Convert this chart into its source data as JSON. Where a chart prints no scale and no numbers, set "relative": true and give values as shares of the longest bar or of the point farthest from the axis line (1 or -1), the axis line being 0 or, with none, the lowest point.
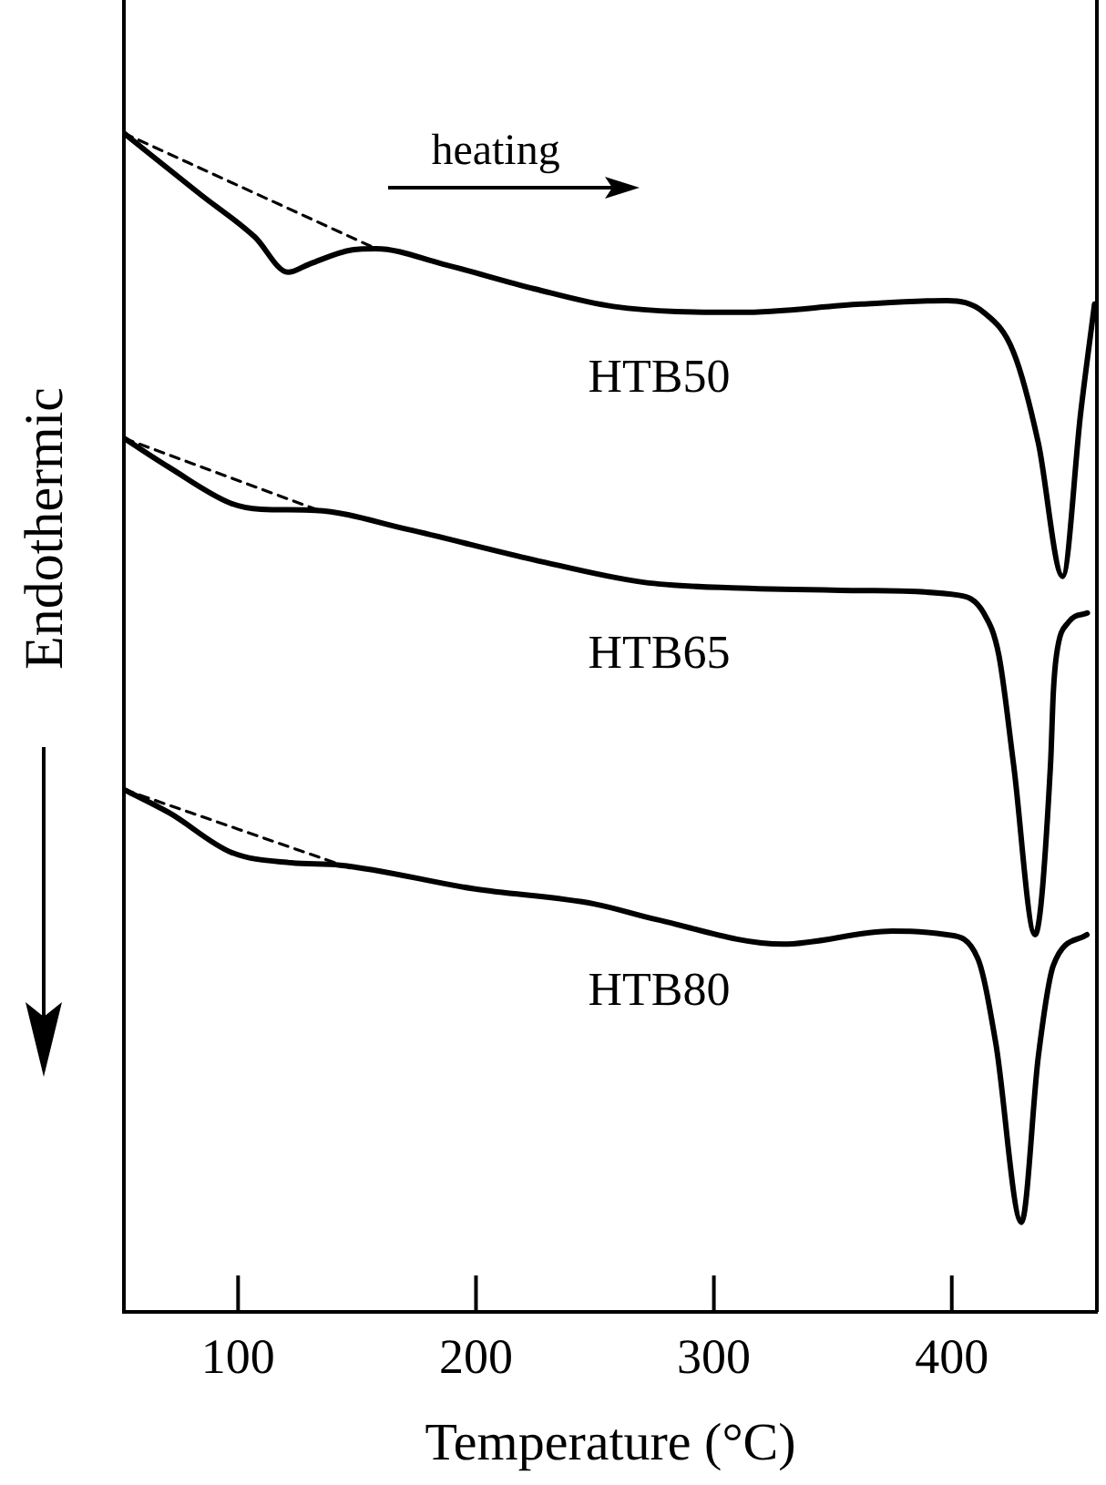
{
  "chart_data": {
    "type": "line",
    "relative": true,
    "xlabel": "Temperature (°C)",
    "ylabel": "Endothermic",
    "xlim": [
      52,
      461
    ],
    "xticks": [
      100,
      200,
      300,
      400
    ],
    "marker": "none",
    "legend": false,
    "grid": false,
    "annotations": [
      "heating"
    ],
    "series": [
      {
        "name": "HTB50",
        "color": "#000000",
        "line_style": "solid",
        "x": [
          52,
          84.2,
          107,
          121,
          130,
          148,
          158,
          186,
          224.5,
          257.7,
          311,
          362,
          398,
          413.4,
          426,
          436.4,
          446.6,
          454.2,
          460
        ],
        "values": [
          1,
          0.948,
          0.912,
          0.882,
          0.889,
          0.901,
          0.902,
          0.889,
          0.868,
          0.853,
          0.848,
          0.855,
          0.858,
          0.848,
          0.814,
          0.737,
          0.624,
          0.763,
          0.855
        ]
      },
      {
        "name": "HTB65",
        "color": "#000000",
        "line_style": "solid",
        "x": [
          52.2,
          71.4,
          97,
          109.6,
          132.6,
          171,
          224.5,
          270.4,
          311,
          362,
          403,
          413.4,
          419.8,
          426,
          435,
          441.5,
          442.7,
          444,
          449,
          457
        ],
        "values": [
          0.741,
          0.716,
          0.686,
          0.681,
          0.68,
          0.664,
          0.638,
          0.619,
          0.614,
          0.612,
          0.608,
          0.593,
          0.557,
          0.464,
          0.32,
          0.464,
          0.526,
          0.557,
          0.585,
          0.593
        ]
      },
      {
        "name": "HTB80",
        "color": "#000000",
        "line_style": "solid",
        "x": [
          52.2,
          71.4,
          97,
          122.4,
          142.9,
          199,
          250,
          275.6,
          329,
          375,
          398,
          410.9,
          418.5,
          429.3,
          436.4,
          442.7,
          456.8
        ],
        "values": [
          0.443,
          0.423,
          0.39,
          0.381,
          0.379,
          0.359,
          0.346,
          0.333,
          0.312,
          0.323,
          0.32,
          0.3,
          0.228,
          0.076,
          0.217,
          0.294,
          0.32
        ]
      },
      {
        "color": "#000000",
        "line_style": "dashed",
        "x": [
          52,
          158
        ],
        "values": [
          1,
          0.902
        ]
      },
      {
        "color": "#000000",
        "line_style": "dashed",
        "x": [
          52.2,
          134
        ],
        "values": [
          0.741,
          0.68
        ]
      },
      {
        "color": "#000000",
        "line_style": "dashed",
        "x": [
          52.2,
          148
        ],
        "values": [
          0.443,
          0.376
        ]
      }
    ]
  }
}
